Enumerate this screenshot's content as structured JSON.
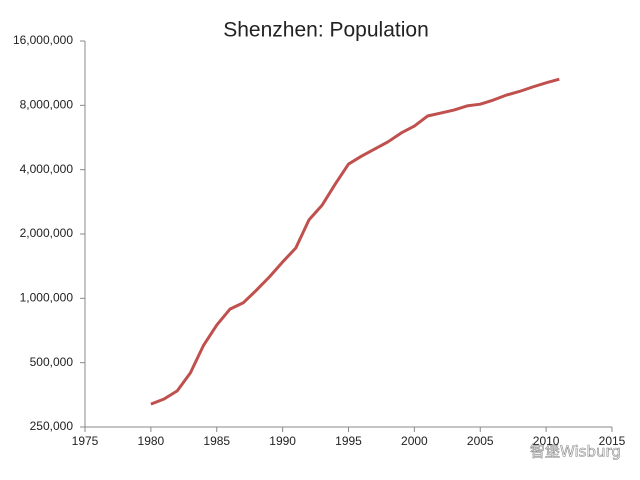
{
  "chart_data": {
    "type": "line",
    "title": "Shenzhen: Population",
    "x": [
      1980,
      1981,
      1982,
      1983,
      1984,
      1985,
      1986,
      1987,
      1988,
      1989,
      1990,
      1991,
      1992,
      1993,
      1994,
      1995,
      1996,
      1997,
      1998,
      1999,
      2000,
      2001,
      2002,
      2003,
      2004,
      2005,
      2006,
      2007,
      2008,
      2009,
      2010,
      2011
    ],
    "series": [
      {
        "name": "Population",
        "color": "#c0504d",
        "values": [
          320000,
          338000,
          369000,
          448000,
          603000,
          750000,
          890000,
          952000,
          1090000,
          1260000,
          1480000,
          1720000,
          2330000,
          2730000,
          3430000,
          4250000,
          4630000,
          5000000,
          5400000,
          5940000,
          6400000,
          7130000,
          7360000,
          7600000,
          7950000,
          8100000,
          8470000,
          8940000,
          9300000,
          9760000,
          10200000,
          10600000
        ]
      }
    ],
    "xlim": [
      1975,
      2015
    ],
    "xticks": [
      1975,
      1980,
      1985,
      1990,
      1995,
      2000,
      2005,
      2010,
      2015
    ],
    "ylim": [
      250000,
      16000000
    ],
    "ylog": true,
    "yticks": [
      {
        "value": 250000,
        "label": "250,000"
      },
      {
        "value": 500000,
        "label": "500,000"
      },
      {
        "value": 1000000,
        "label": "1,000,000"
      },
      {
        "value": 2000000,
        "label": "2,000,000"
      },
      {
        "value": 4000000,
        "label": "4,000,000"
      },
      {
        "value": 8000000,
        "label": "8,000,000"
      },
      {
        "value": 16000000,
        "label": "16,000,000"
      }
    ],
    "grid": false,
    "watermark": "智堡Wisburg"
  }
}
